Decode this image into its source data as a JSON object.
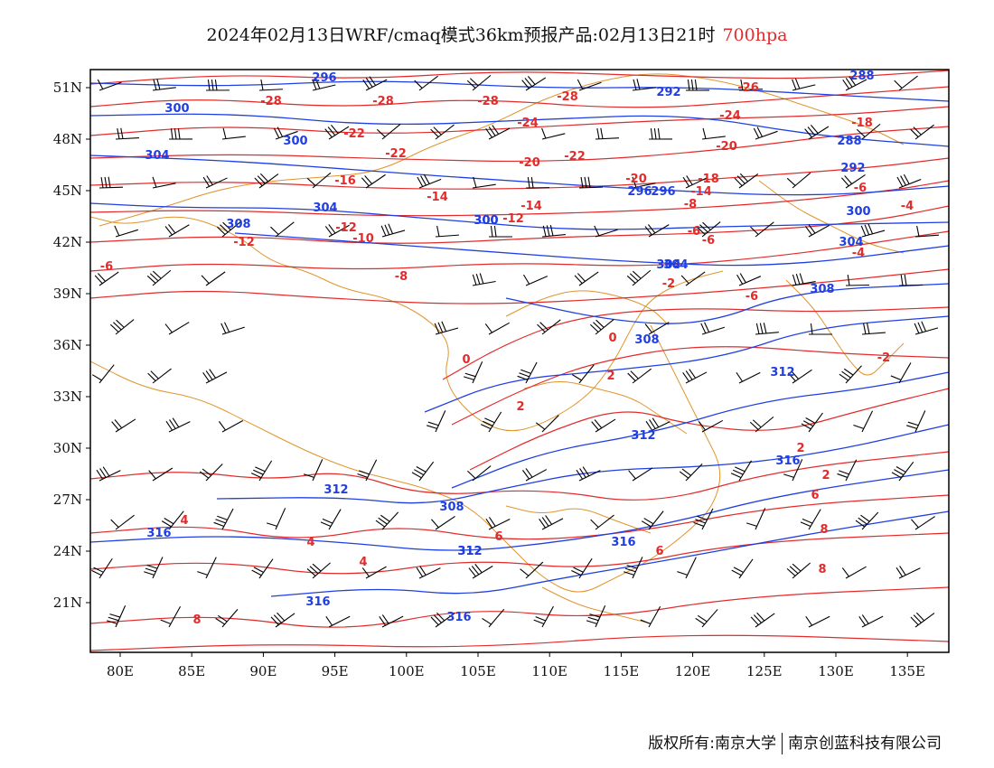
{
  "title": {
    "main": "2024年02月13日WRF/cmaq模式36km预报产品:02月13日21时",
    "level": "700hpa"
  },
  "colors": {
    "temperature_contour": "#e22b2b",
    "height_contour": "#1f3fe0",
    "boundary": "#e0952e",
    "barb": "#000000",
    "frame": "#000000"
  },
  "map": {
    "lon_range": [
      78,
      138
    ],
    "lat_range": [
      17.5,
      52
    ],
    "x_ticks": [
      "80E",
      "85E",
      "90E",
      "95E",
      "100E",
      "105E",
      "110E",
      "115E",
      "120E",
      "125E",
      "130E",
      "135E"
    ],
    "y_ticks": [
      "51N",
      "48N",
      "45N",
      "42N",
      "39N",
      "36N",
      "33N",
      "30N",
      "27N",
      "24N",
      "21N"
    ],
    "temperature_labels": [
      "-28",
      "-28",
      "-28",
      "-28",
      "-26",
      "-24",
      "-24",
      "-22",
      "-22",
      "-22",
      "-20",
      "-20",
      "-20",
      "-18",
      "-18",
      "-16",
      "-14",
      "-14",
      "-14",
      "-12",
      "-12",
      "-12",
      "-10",
      "-8",
      "-8",
      "-6",
      "-6",
      "-6",
      "-6",
      "-6",
      "-4",
      "-4",
      "-2",
      "-2",
      "0",
      "0",
      "2",
      "2",
      "2",
      "2",
      "4",
      "4",
      "4",
      "6",
      "6",
      "6",
      "8",
      "8",
      "8"
    ],
    "height_labels": [
      "296",
      "300",
      "300",
      "304",
      "304",
      "308",
      "300",
      "296",
      "292",
      "288",
      "288",
      "292",
      "296",
      "300",
      "300",
      "304",
      "304",
      "308",
      "308",
      "312",
      "312",
      "316",
      "316",
      "312",
      "312",
      "308",
      "312",
      "316",
      "316",
      "316",
      "304"
    ]
  },
  "footer": {
    "left": "版权所有:南京大学",
    "right": "南京创蓝科技有限公司"
  }
}
